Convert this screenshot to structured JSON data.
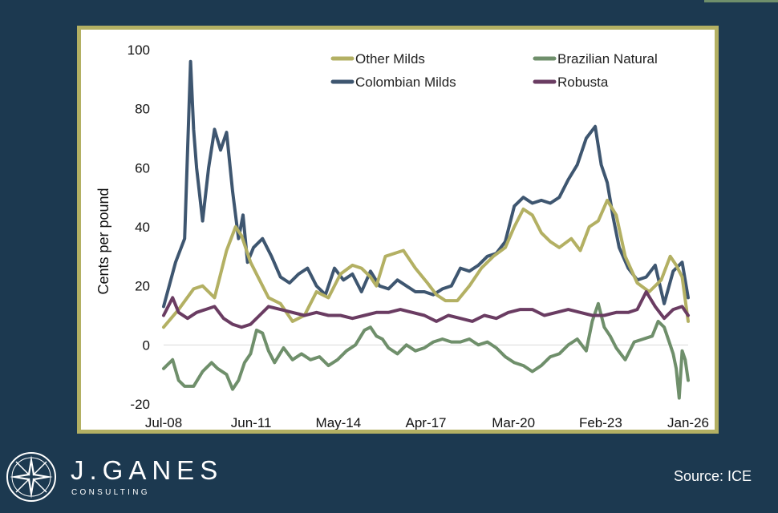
{
  "branding": {
    "name": "J.GANES",
    "sub": "CONSULTING",
    "source": "Source: ICE"
  },
  "colors": {
    "background": "#1c3950",
    "frame": "#b3b063",
    "other_milds": "#b3b063",
    "brazilian_natural": "#6f8f6b",
    "colombian_milds": "#3e5670",
    "robusta": "#6a3c62"
  },
  "chart_data": {
    "type": "line",
    "title": "",
    "xlabel": "",
    "ylabel": "Cents per pound",
    "ylim": [
      -20,
      100
    ],
    "yticks": [
      -20,
      0,
      20,
      40,
      60,
      80,
      100
    ],
    "xlim": [
      2008.5,
      2026.0
    ],
    "xtick_values": [
      2008.5,
      2011.42,
      2014.33,
      2017.25,
      2020.17,
      2023.08,
      2026.0
    ],
    "xtick_labels": [
      "Jul-08",
      "Jun-11",
      "May-14",
      "Apr-17",
      "Mar-20",
      "Feb-23",
      "Jan-26"
    ],
    "grid": false,
    "legend_position": "top-right",
    "series": [
      {
        "name": "Other Milds",
        "color": "#b3b063",
        "x": [
          2008.5,
          2009.0,
          2009.5,
          2009.8,
          2010.2,
          2010.6,
          2010.9,
          2011.1,
          2011.4,
          2011.7,
          2012.0,
          2012.4,
          2012.8,
          2013.2,
          2013.6,
          2014.0,
          2014.4,
          2014.8,
          2015.1,
          2015.4,
          2015.6,
          2015.9,
          2016.2,
          2016.5,
          2016.9,
          2017.3,
          2017.6,
          2017.9,
          2018.3,
          2018.7,
          2019.1,
          2019.5,
          2019.9,
          2020.2,
          2020.5,
          2020.8,
          2021.1,
          2021.4,
          2021.7,
          2022.1,
          2022.4,
          2022.7,
          2023.0,
          2023.3,
          2023.6,
          2023.9,
          2024.3,
          2024.7,
          2025.1,
          2025.4,
          2025.6,
          2025.8,
          2026.0
        ],
        "values": [
          6,
          12,
          19,
          20,
          16,
          32,
          40,
          37,
          28,
          22,
          16,
          14,
          8,
          10,
          18,
          16,
          24,
          27,
          26,
          23,
          20,
          30,
          31,
          32,
          26,
          21,
          17,
          15,
          15,
          20,
          26,
          30,
          33,
          40,
          46,
          44,
          38,
          35,
          33,
          36,
          32,
          40,
          42,
          49,
          44,
          30,
          21,
          18,
          22,
          30,
          27,
          23,
          8
        ]
      },
      {
        "name": "Brazilian Natural",
        "color": "#6f8f6b",
        "x": [
          2008.5,
          2008.8,
          2009.0,
          2009.2,
          2009.5,
          2009.8,
          2010.1,
          2010.3,
          2010.6,
          2010.8,
          2011.0,
          2011.2,
          2011.4,
          2011.6,
          2011.8,
          2012.0,
          2012.2,
          2012.5,
          2012.8,
          2013.1,
          2013.4,
          2013.7,
          2014.0,
          2014.3,
          2014.6,
          2014.9,
          2015.2,
          2015.4,
          2015.6,
          2015.8,
          2016.0,
          2016.3,
          2016.6,
          2016.9,
          2017.2,
          2017.5,
          2017.8,
          2018.1,
          2018.4,
          2018.7,
          2019.0,
          2019.3,
          2019.6,
          2019.9,
          2020.2,
          2020.5,
          2020.8,
          2021.1,
          2021.4,
          2021.7,
          2022.0,
          2022.3,
          2022.6,
          2022.8,
          2023.0,
          2023.2,
          2023.4,
          2023.6,
          2023.9,
          2024.2,
          2024.5,
          2024.8,
          2025.0,
          2025.2,
          2025.4,
          2025.5,
          2025.6,
          2025.7,
          2025.8,
          2025.9,
          2026.0
        ],
        "values": [
          -8,
          -5,
          -12,
          -14,
          -14,
          -9,
          -6,
          -8,
          -10,
          -15,
          -12,
          -6,
          -3,
          5,
          4,
          -2,
          -6,
          -1,
          -5,
          -3,
          -5,
          -4,
          -7,
          -5,
          -2,
          0,
          5,
          6,
          3,
          2,
          -1,
          -3,
          0,
          -2,
          -1,
          1,
          2,
          1,
          1,
          2,
          0,
          1,
          -1,
          -4,
          -6,
          -7,
          -9,
          -7,
          -4,
          -3,
          0,
          2,
          -2,
          8,
          14,
          6,
          3,
          -1,
          -5,
          1,
          2,
          3,
          8,
          6,
          0,
          -3,
          -8,
          -18,
          -2,
          -5,
          -12
        ]
      },
      {
        "name": "Colombian Milds",
        "color": "#3e5670",
        "x": [
          2008.5,
          2008.9,
          2009.2,
          2009.4,
          2009.5,
          2009.6,
          2009.8,
          2010.0,
          2010.2,
          2010.4,
          2010.6,
          2010.8,
          2011.0,
          2011.15,
          2011.3,
          2011.5,
          2011.8,
          2012.1,
          2012.4,
          2012.7,
          2013.0,
          2013.3,
          2013.6,
          2013.9,
          2014.2,
          2014.5,
          2014.8,
          2015.1,
          2015.4,
          2015.7,
          2016.0,
          2016.3,
          2016.6,
          2016.9,
          2017.2,
          2017.5,
          2017.8,
          2018.1,
          2018.4,
          2018.7,
          2019.0,
          2019.3,
          2019.6,
          2019.9,
          2020.2,
          2020.5,
          2020.8,
          2021.1,
          2021.4,
          2021.7,
          2022.0,
          2022.3,
          2022.6,
          2022.9,
          2023.1,
          2023.3,
          2023.5,
          2023.7,
          2024.0,
          2024.3,
          2024.6,
          2024.9,
          2025.2,
          2025.5,
          2025.8,
          2026.0
        ],
        "values": [
          13,
          28,
          36,
          96,
          73,
          60,
          42,
          60,
          73,
          66,
          72,
          52,
          36,
          44,
          28,
          33,
          36,
          30,
          23,
          21,
          24,
          26,
          20,
          17,
          26,
          22,
          24,
          18,
          25,
          20,
          19,
          22,
          20,
          18,
          18,
          17,
          19,
          20,
          26,
          25,
          27,
          30,
          31,
          35,
          47,
          50,
          48,
          49,
          48,
          50,
          56,
          61,
          70,
          74,
          61,
          55,
          43,
          33,
          26,
          22,
          23,
          27,
          14,
          25,
          28,
          16
        ]
      },
      {
        "name": "Robusta",
        "color": "#6a3c62",
        "x": [
          2008.5,
          2008.8,
          2009.0,
          2009.3,
          2009.6,
          2009.9,
          2010.2,
          2010.5,
          2010.8,
          2011.1,
          2011.4,
          2011.7,
          2012.0,
          2012.4,
          2012.8,
          2013.2,
          2013.6,
          2014.0,
          2014.4,
          2014.8,
          2015.2,
          2015.6,
          2016.0,
          2016.4,
          2016.8,
          2017.2,
          2017.6,
          2018.0,
          2018.4,
          2018.8,
          2019.2,
          2019.6,
          2020.0,
          2020.4,
          2020.8,
          2021.2,
          2021.6,
          2022.0,
          2022.4,
          2022.8,
          2023.2,
          2023.6,
          2024.0,
          2024.3,
          2024.6,
          2024.9,
          2025.2,
          2025.5,
          2025.8,
          2026.0
        ],
        "values": [
          10,
          16,
          11,
          9,
          11,
          12,
          13,
          9,
          7,
          6,
          7,
          10,
          13,
          12,
          11,
          10,
          11,
          10,
          10,
          9,
          10,
          11,
          11,
          12,
          11,
          10,
          8,
          10,
          9,
          8,
          10,
          9,
          11,
          12,
          12,
          10,
          11,
          12,
          11,
          10,
          10,
          11,
          11,
          12,
          18,
          13,
          9,
          12,
          13,
          10
        ]
      }
    ]
  }
}
